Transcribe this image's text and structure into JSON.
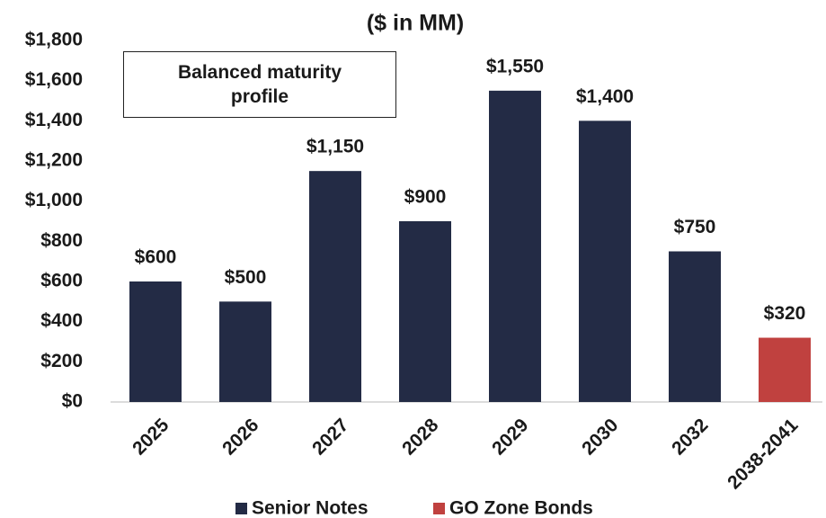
{
  "chart_data": {
    "type": "bar",
    "title": "($ in MM)",
    "annotations": [
      "Balanced maturity profile"
    ],
    "categories": [
      "2025",
      "2026",
      "2027",
      "2028",
      "2029",
      "2030",
      "2032",
      "2038-2041"
    ],
    "series": [
      {
        "name": "Senior Notes",
        "color": "#232b45",
        "values": [
          600,
          500,
          1150,
          900,
          1550,
          1400,
          750,
          null
        ],
        "value_labels": [
          "$600",
          "$500",
          "$1,150",
          "$900",
          "$1,550",
          "$1,400",
          "$750",
          null
        ]
      },
      {
        "name": "GO Zone Bonds",
        "color": "#c0413f",
        "values": [
          null,
          null,
          null,
          null,
          null,
          null,
          null,
          320
        ],
        "value_labels": [
          null,
          null,
          null,
          null,
          null,
          null,
          null,
          "$320"
        ]
      }
    ],
    "ylim": [
      0,
      1800
    ],
    "yticks": [
      {
        "value": 0,
        "label": "$0"
      },
      {
        "value": 200,
        "label": "$200"
      },
      {
        "value": 400,
        "label": "$400"
      },
      {
        "value": 600,
        "label": "$600"
      },
      {
        "value": 800,
        "label": "$800"
      },
      {
        "value": 1000,
        "label": "$1,000"
      },
      {
        "value": 1200,
        "label": "$1,200"
      },
      {
        "value": 1400,
        "label": "$1,400"
      },
      {
        "value": 1600,
        "label": "$1,600"
      },
      {
        "value": 1800,
        "label": "$1,800"
      }
    ],
    "grid": false,
    "legend": "bottom"
  }
}
